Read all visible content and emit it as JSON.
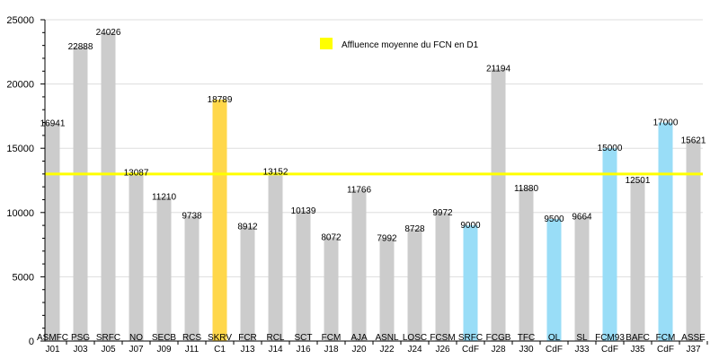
{
  "colors": {
    "home": "#cccccc",
    "cup": "#99ddf7",
    "highlight": "#ffd74a",
    "average": "#ffff00",
    "grid": "#dddddd",
    "axis": "#000000"
  },
  "chart_data": {
    "type": "bar",
    "ylim": [
      0,
      25000
    ],
    "yticks": [
      0,
      5000,
      10000,
      15000,
      20000,
      25000
    ],
    "grid": true,
    "legend_position": "top-center",
    "average_line": {
      "value": 13000,
      "label": "Affluence moyenne du FCN en D1"
    },
    "categories": [
      {
        "code": "ASMFC",
        "round": "J01",
        "value": 16941,
        "kind": "home"
      },
      {
        "code": "PSG",
        "round": "J03",
        "value": 22888,
        "kind": "home"
      },
      {
        "code": "SRFC",
        "round": "J05",
        "value": 24026,
        "kind": "home"
      },
      {
        "code": "NO",
        "round": "J07",
        "value": 13087,
        "kind": "home"
      },
      {
        "code": "SECB",
        "round": "J09",
        "value": 11210,
        "kind": "home"
      },
      {
        "code": "RCS",
        "round": "J11",
        "value": 9738,
        "kind": "home"
      },
      {
        "code": "SKRV",
        "round": "C1",
        "value": 18789,
        "kind": "highlight"
      },
      {
        "code": "FCR",
        "round": "J13",
        "value": 8912,
        "kind": "home"
      },
      {
        "code": "RCL",
        "round": "J14",
        "value": 13152,
        "kind": "home"
      },
      {
        "code": "SCT",
        "round": "J16",
        "value": 10139,
        "kind": "home"
      },
      {
        "code": "FCM",
        "round": "J18",
        "value": 8072,
        "kind": "home"
      },
      {
        "code": "AJA",
        "round": "J20",
        "value": 11766,
        "kind": "home"
      },
      {
        "code": "ASNL",
        "round": "J22",
        "value": 7992,
        "kind": "home"
      },
      {
        "code": "LOSC",
        "round": "J24",
        "value": 8728,
        "kind": "home"
      },
      {
        "code": "FCSM",
        "round": "J26",
        "value": 9972,
        "kind": "home"
      },
      {
        "code": "SRFC",
        "round": "CdF",
        "value": 9000,
        "kind": "cup"
      },
      {
        "code": "FCGB",
        "round": "J28",
        "value": 21194,
        "kind": "home"
      },
      {
        "code": "TFC",
        "round": "J30",
        "value": 11880,
        "kind": "home"
      },
      {
        "code": "OL",
        "round": "CdF",
        "value": 9500,
        "kind": "cup"
      },
      {
        "code": "SL",
        "round": "J33",
        "value": 9664,
        "kind": "home"
      },
      {
        "code": "FCM93",
        "round": "CdF",
        "value": 15000,
        "kind": "cup"
      },
      {
        "code": "BAFC",
        "round": "J35",
        "value": 12501,
        "kind": "home"
      },
      {
        "code": "FCM",
        "round": "CdF",
        "value": 17000,
        "kind": "cup"
      },
      {
        "code": "ASSE",
        "round": "J37",
        "value": 15621,
        "kind": "home"
      }
    ]
  }
}
